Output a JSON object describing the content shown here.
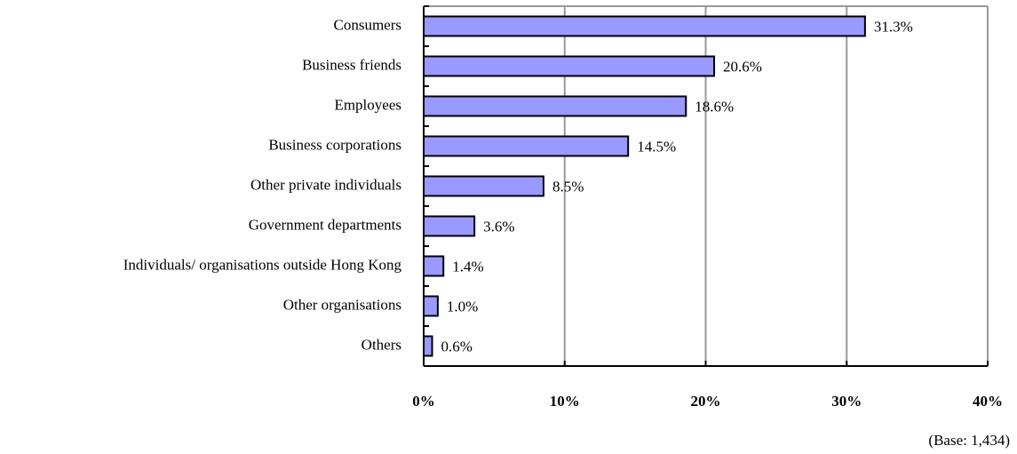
{
  "chart_data": {
    "type": "bar",
    "orientation": "horizontal",
    "categories": [
      "Consumers",
      "Business friends",
      "Employees",
      "Business corporations",
      "Other private individuals",
      "Government departments",
      "Individuals/ organisations outside Hong Kong",
      "Other organisations",
      "Others"
    ],
    "values": [
      31.3,
      20.6,
      18.6,
      14.5,
      8.5,
      3.6,
      1.4,
      1.0,
      0.6
    ],
    "value_labels": [
      "31.3%",
      "20.6%",
      "18.6%",
      "14.5%",
      "8.5%",
      "3.6%",
      "1.4%",
      "1.0%",
      "0.6%"
    ],
    "color": "#9999ff",
    "xlim": [
      0,
      40
    ],
    "xticks": [
      {
        "value": 0,
        "label": "0%"
      },
      {
        "value": 10,
        "label": "10%"
      },
      {
        "value": 20,
        "label": "20%"
      },
      {
        "value": 30,
        "label": "30%"
      },
      {
        "value": 40,
        "label": "40%"
      }
    ],
    "grid": true,
    "note": "(Base: 1,434)"
  }
}
